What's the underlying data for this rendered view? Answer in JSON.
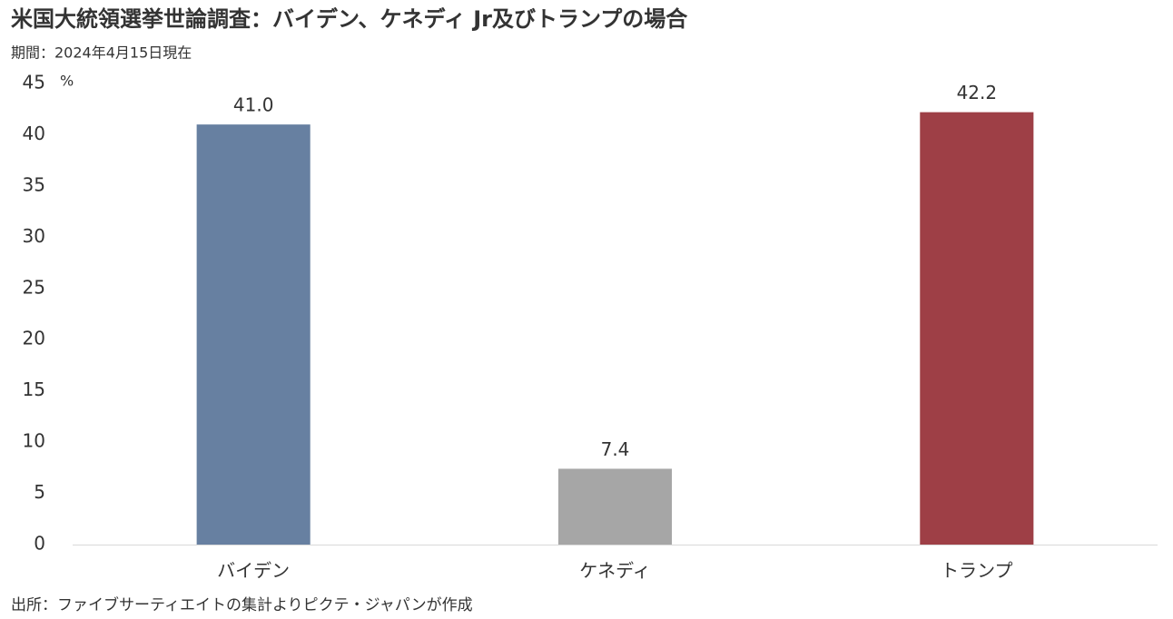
{
  "chart_data": {
    "type": "bar",
    "title": "米国大統領選挙世論調査：バイデン、ケネディ Jr及びトランプの場合",
    "subtitle": "期間：2024年4月15日現在",
    "y_unit": "%",
    "source": "出所：ファイブサーティエイトの集計よりピクテ・ジャパンが作成",
    "categories": [
      "バイデン",
      "ケネディ",
      "トランプ"
    ],
    "values": [
      41.0,
      7.4,
      42.2
    ],
    "value_labels": [
      "41.0",
      "7.4",
      "42.2"
    ],
    "colors": [
      "#6780a1",
      "#a6a6a6",
      "#9e3f46"
    ],
    "ylim": [
      0,
      45
    ],
    "yticks": [
      0,
      5,
      10,
      15,
      20,
      25,
      30,
      35,
      40,
      45
    ],
    "grid": false
  }
}
